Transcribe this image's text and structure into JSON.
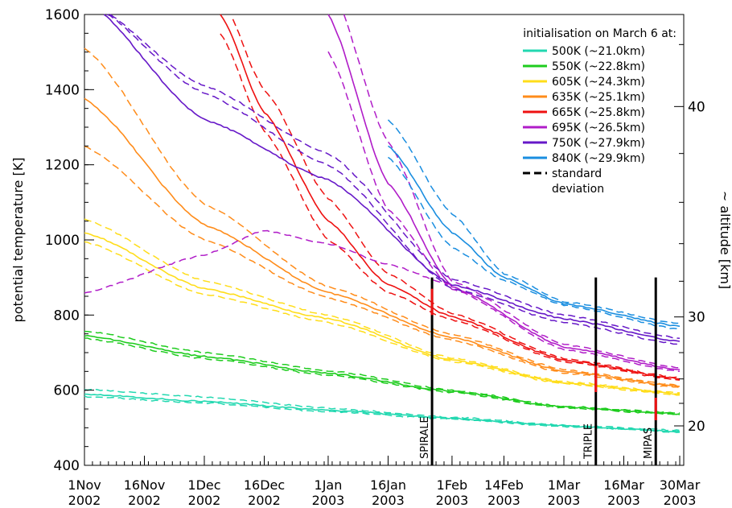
{
  "chart_data": {
    "type": "line",
    "title": "",
    "xlabel": "",
    "ylabel": "potential temperature [K]",
    "y2label": "~ altitude [km]",
    "xlim": [
      "2002-11-01",
      "2003-03-31"
    ],
    "ylim": [
      400,
      1600
    ],
    "y2_ticks": [
      {
        "label": "20",
        "at_theta": 505
      },
      {
        "label": "30",
        "at_theta": 795
      },
      {
        "label": "40",
        "at_theta": 1355
      }
    ],
    "y2_minor_ticks_at_theta": [
      565,
      630,
      700,
      890,
      990,
      1100,
      1230,
      1520
    ],
    "y_ticks": [
      400,
      600,
      800,
      1000,
      1200,
      1400,
      1600
    ],
    "x_ticks": [
      {
        "date": "2002-11-01",
        "label1": "1Nov",
        "label2": "2002"
      },
      {
        "date": "2002-11-16",
        "label1": "16Nov",
        "label2": "2002"
      },
      {
        "date": "2002-12-01",
        "label1": "1Dec",
        "label2": "2002"
      },
      {
        "date": "2002-12-16",
        "label1": "16Dec",
        "label2": "2002"
      },
      {
        "date": "2003-01-01",
        "label1": "1Jan",
        "label2": "2003"
      },
      {
        "date": "2003-01-16",
        "label1": "16Jan",
        "label2": "2003"
      },
      {
        "date": "2003-02-01",
        "label1": "1Feb",
        "label2": "2003"
      },
      {
        "date": "2003-02-14",
        "label1": "14Feb",
        "label2": "2003"
      },
      {
        "date": "2003-03-01",
        "label1": "1Mar",
        "label2": "2003"
      },
      {
        "date": "2003-03-16",
        "label1": "16Mar",
        "label2": "2003"
      },
      {
        "date": "2003-03-30",
        "label1": "30Mar",
        "label2": "2003"
      }
    ],
    "legend": {
      "title": "initialisation on March 6 at:",
      "placement": "top-right",
      "std_label_1": "standard",
      "std_label_2": "deviation"
    },
    "series": [
      {
        "name": "500K (~21.0km)",
        "color": "#22d8b0",
        "x": [
          "2002-11-01",
          "2002-12-01",
          "2003-01-01",
          "2003-02-01",
          "2003-03-01",
          "2003-03-30"
        ],
        "mean": [
          590,
          570,
          547,
          525,
          505,
          490
        ],
        "std_upper": [
          602,
          582,
          552,
          528,
          507,
          493
        ],
        "std_lower": [
          583,
          566,
          543,
          523,
          503,
          488
        ]
      },
      {
        "name": "550K (~22.8km)",
        "color": "#1ecc1e",
        "x": [
          "2002-11-01",
          "2002-12-01",
          "2003-01-01",
          "2003-02-01",
          "2003-03-01",
          "2003-03-30"
        ],
        "mean": [
          745,
          690,
          645,
          597,
          555,
          537
        ],
        "std_upper": [
          758,
          700,
          652,
          600,
          557,
          539
        ],
        "std_lower": [
          738,
          684,
          640,
          594,
          553,
          535
        ]
      },
      {
        "name": "605K (~24.3km)",
        "color": "#ffdd1a",
        "x": [
          "2002-11-01",
          "2002-12-01",
          "2003-01-01",
          "2003-02-01",
          "2003-03-01",
          "2003-03-30"
        ],
        "mean": [
          1020,
          870,
          790,
          680,
          620,
          590
        ],
        "std_upper": [
          1055,
          890,
          800,
          685,
          623,
          593
        ],
        "std_lower": [
          995,
          855,
          780,
          676,
          617,
          587
        ]
      },
      {
        "name": "635K (~25.1km)",
        "color": "#ff8c1a",
        "x": [
          "2002-11-01",
          "2002-12-01",
          "2003-01-01",
          "2003-02-01",
          "2003-03-01",
          "2003-03-30"
        ],
        "mean": [
          1375,
          1040,
          860,
          740,
          650,
          610
        ],
        "std_upper": [
          1510,
          1095,
          875,
          748,
          654,
          613
        ],
        "std_lower": [
          1250,
          1000,
          845,
          733,
          646,
          607
        ]
      },
      {
        "name": "665K (~25.8km)",
        "color": "#ee1111",
        "x": [
          "2002-12-05",
          "2002-12-16",
          "2003-01-01",
          "2003-01-16",
          "2003-02-01",
          "2003-03-01",
          "2003-03-30"
        ],
        "mean": [
          1600,
          1340,
          1050,
          880,
          795,
          680,
          630
        ],
        "std_upper": [
          1650,
          1400,
          1110,
          910,
          805,
          684,
          633
        ],
        "std_lower": [
          1550,
          1290,
          1000,
          860,
          787,
          676,
          627
        ]
      },
      {
        "name": "695K (~26.5km)",
        "color": "#b01cc8",
        "x": [
          "2003-01-01",
          "2003-01-16",
          "2003-02-01",
          "2003-03-01",
          "2003-03-30"
        ],
        "mean": [
          1600,
          1150,
          875,
          715,
          655
        ],
        "std_upper": [
          1700,
          1260,
          890,
          722,
          660
        ],
        "std_lower": [
          1500,
          1080,
          870,
          708,
          650
        ]
      },
      {
        "name": "750K (~27.9km)",
        "color": "#6618c8",
        "x": [
          "2002-11-01",
          "2002-12-01",
          "2003-01-01",
          "2003-02-01",
          "2003-03-01",
          "2003-03-30"
        ],
        "mean": [
          1640,
          1320,
          1160,
          880,
          790,
          730
        ],
        "std_upper": [
          1640,
          1410,
          1230,
          895,
          800,
          738
        ],
        "std_lower": [
          1640,
          1390,
          1200,
          870,
          780,
          722
        ]
      },
      {
        "name": "840K (~29.9km)",
        "color": "#1a8ee0",
        "x": [
          "2003-01-16",
          "2003-02-01",
          "2003-02-14",
          "2003-03-01",
          "2003-03-30"
        ],
        "mean": [
          1250,
          1020,
          900,
          830,
          770
        ],
        "std_upper": [
          1320,
          1070,
          910,
          836,
          778
        ],
        "std_lower": [
          1220,
          980,
          892,
          826,
          762
        ]
      }
    ],
    "extra_curves": [
      {
        "series": "695K (~26.5km)",
        "kind": "std",
        "x": [
          "2002-11-01",
          "2002-12-01",
          "2002-12-16",
          "2003-01-01",
          "2003-01-16",
          "2003-02-01"
        ],
        "y": [
          860,
          960,
          1025,
          990,
          935,
          880
        ]
      }
    ],
    "campaigns": [
      {
        "label": "SPIRALE",
        "date": "2003-01-27",
        "theta_range": [
          400,
          900
        ],
        "red_segment": [
          800,
          870
        ]
      },
      {
        "label": "TRIPLE",
        "date": "2003-03-09",
        "theta_range": [
          400,
          900
        ],
        "red_segment": [
          595,
          665
        ]
      },
      {
        "label": "MIPAS",
        "date": "2003-03-24",
        "theta_range": [
          400,
          900
        ],
        "red_segment": [
          520,
          580
        ]
      }
    ]
  }
}
